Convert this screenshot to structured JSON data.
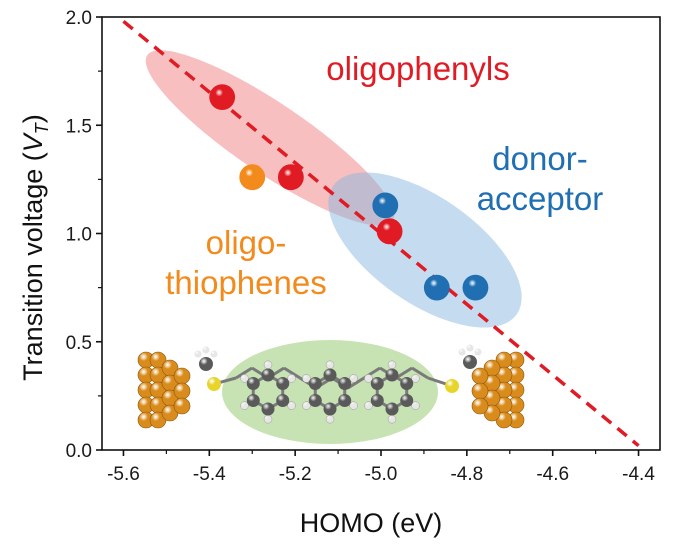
{
  "chart_data": {
    "type": "scatter",
    "xlabel": "HOMO (eV)",
    "ylabel": {
      "main": "Transition voltage  (",
      "symbol": "V",
      "subscript": "T",
      "close": ")"
    },
    "xlim": [
      -5.65,
      -4.35
    ],
    "ylim": [
      0.0,
      2.0
    ],
    "xticks": [
      "-5.6",
      "-5.4",
      "-5.2",
      "-5.0",
      "-4.8",
      "-4.6",
      "-4.4"
    ],
    "yticks": [
      "0.0",
      "0.5",
      "1.0",
      "1.5",
      "2.0"
    ],
    "grid": false,
    "series": [
      {
        "name": "oligophenyls",
        "color": "#e01b24",
        "points": [
          {
            "x": -5.37,
            "y": 1.63
          },
          {
            "x": -5.21,
            "y": 1.26
          },
          {
            "x": -4.98,
            "y": 1.01
          }
        ]
      },
      {
        "name": "donor-acceptor",
        "color": "#1f6fb2",
        "points": [
          {
            "x": -4.99,
            "y": 1.13
          },
          {
            "x": -4.87,
            "y": 0.75
          },
          {
            "x": -4.78,
            "y": 0.75
          }
        ]
      },
      {
        "name": "oligo-\nthiophenes",
        "color": "#f28a1c",
        "points": [
          {
            "x": -5.3,
            "y": 1.26
          }
        ]
      }
    ],
    "group_labels": [
      {
        "lines": [
          "oligophenyls"
        ],
        "color": "#e01b24"
      },
      {
        "lines": [
          "donor-",
          "acceptor"
        ],
        "color": "#1f6fb2"
      },
      {
        "lines": [
          "oligo-",
          "thiophenes"
        ],
        "color": "#f28a1c"
      }
    ],
    "regions": [
      {
        "group": "oligophenyls",
        "color": "#f08080"
      },
      {
        "group": "donor-acceptor",
        "color": "#8bb8e0"
      }
    ],
    "trend_line": {
      "x": [
        -5.6,
        -4.4
      ],
      "y": [
        1.98,
        0.02
      ],
      "color": "#e01b24",
      "style": "dashed"
    },
    "inset": {
      "description": "molecule",
      "colors": {
        "gold": "#d98c1c",
        "carbon": "#5a5a5a",
        "hydrogen": "#e6e6e6",
        "sulfur": "#e8d52a",
        "highlight": "#b5d99a"
      }
    }
  }
}
